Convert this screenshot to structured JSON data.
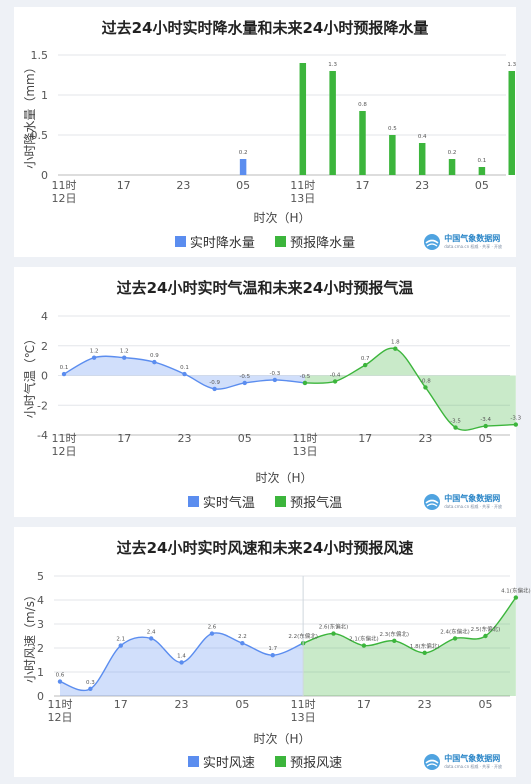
{
  "brand": {
    "name": "中国气象数据网",
    "sub": "data.cma.cn 权威 · 共享 · 开放"
  },
  "colors": {
    "observed": "#5b8def",
    "forecast": "#3cb53c"
  },
  "chart_data": [
    {
      "id": "precip",
      "type": "bar",
      "title": "过去24小时实时降水量和未来24小时预报降水量",
      "ylabel": "小时降水量（mm）",
      "xlabel": "时次（H）",
      "ylim": [
        0,
        1.5
      ],
      "yticks": [
        "0",
        "0.5",
        "1",
        "1.5"
      ],
      "ytick_values": [
        0,
        0.5,
        1,
        1.5
      ],
      "xticks": [
        {
          "i": 0,
          "label": "11时",
          "sub": "12日"
        },
        {
          "i": 6,
          "label": "17",
          "sub": ""
        },
        {
          "i": 12,
          "label": "23",
          "sub": ""
        },
        {
          "i": 18,
          "label": "05",
          "sub": ""
        },
        {
          "i": 24,
          "label": "11时",
          "sub": "13日"
        },
        {
          "i": 30,
          "label": "17",
          "sub": ""
        },
        {
          "i": 36,
          "label": "23",
          "sub": ""
        },
        {
          "i": 42,
          "label": "05",
          "sub": ""
        }
      ],
      "series": [
        {
          "name": "实时降水量",
          "kind": "observed",
          "points": [
            [
              18,
              0.2
            ]
          ]
        },
        {
          "name": "预报降水量",
          "kind": "forecast",
          "points": [
            [
              24,
              1.4
            ],
            [
              27,
              1.3
            ],
            [
              30,
              0.8
            ],
            [
              33,
              0.5
            ],
            [
              36,
              0.4
            ],
            [
              39,
              0.2
            ],
            [
              42,
              0.1
            ],
            [
              45,
              1.3
            ]
          ]
        }
      ],
      "labels": [
        {
          "i": 18,
          "v": 0.2,
          "text": "0.2"
        },
        {
          "i": 27,
          "v": 1.3,
          "text": "1.3"
        },
        {
          "i": 30,
          "v": 0.8,
          "text": "0.8"
        },
        {
          "i": 33,
          "v": 0.5,
          "text": "0.5"
        },
        {
          "i": 36,
          "v": 0.4,
          "text": "0.4"
        },
        {
          "i": 39,
          "v": 0.2,
          "text": "0.2"
        },
        {
          "i": 42,
          "v": 0.1,
          "text": "0.1"
        },
        {
          "i": 45,
          "v": 1.3,
          "text": "1.3"
        }
      ]
    },
    {
      "id": "temp",
      "type": "area",
      "title": "过去24小时实时气温和未来24小时预报气温",
      "ylabel": "小时气温（℃）",
      "xlabel": "时次（H）",
      "ylim": [
        -4,
        4
      ],
      "yticks": [
        "-4",
        "-2",
        "0",
        "2",
        "4"
      ],
      "ytick_values": [
        -4,
        -2,
        0,
        2,
        4
      ],
      "xticks": [
        {
          "i": 0,
          "label": "11时",
          "sub": "12日"
        },
        {
          "i": 6,
          "label": "17",
          "sub": ""
        },
        {
          "i": 12,
          "label": "23",
          "sub": ""
        },
        {
          "i": 18,
          "label": "05",
          "sub": ""
        },
        {
          "i": 24,
          "label": "11时",
          "sub": "13日"
        },
        {
          "i": 30,
          "label": "17",
          "sub": ""
        },
        {
          "i": 36,
          "label": "23",
          "sub": ""
        },
        {
          "i": 42,
          "label": "05",
          "sub": ""
        }
      ],
      "series": [
        {
          "name": "实时气温",
          "kind": "observed",
          "points": [
            [
              0,
              0.1
            ],
            [
              3,
              1.2
            ],
            [
              6,
              1.2
            ],
            [
              9,
              0.9
            ],
            [
              12,
              0.1
            ],
            [
              15,
              -0.9
            ],
            [
              18,
              -0.5
            ],
            [
              21,
              -0.3
            ],
            [
              24,
              -0.5
            ]
          ]
        },
        {
          "name": "预报气温",
          "kind": "forecast",
          "points": [
            [
              24,
              -0.5
            ],
            [
              27,
              -0.4
            ],
            [
              30,
              0.7
            ],
            [
              33,
              1.8
            ],
            [
              36,
              -0.8
            ],
            [
              39,
              -3.5
            ],
            [
              42,
              -3.4
            ],
            [
              45,
              -3.3
            ]
          ]
        }
      ],
      "labels": [
        {
          "i": 0,
          "v": 0.1,
          "text": "0.1"
        },
        {
          "i": 3,
          "v": 1.2,
          "text": "1.2"
        },
        {
          "i": 6,
          "v": 1.2,
          "text": "1.2"
        },
        {
          "i": 9,
          "v": 0.9,
          "text": "0.9"
        },
        {
          "i": 12,
          "v": 0.1,
          "text": "0.1"
        },
        {
          "i": 15,
          "v": -0.9,
          "text": "-0.9"
        },
        {
          "i": 18,
          "v": -0.5,
          "text": "-0.5"
        },
        {
          "i": 21,
          "v": -0.3,
          "text": "-0.3"
        },
        {
          "i": 24,
          "v": -0.5,
          "text": "-0.5"
        },
        {
          "i": 27,
          "v": -0.4,
          "text": "-0.4"
        },
        {
          "i": 30,
          "v": 0.7,
          "text": "0.7"
        },
        {
          "i": 33,
          "v": 1.8,
          "text": "1.8"
        },
        {
          "i": 36,
          "v": -0.8,
          "text": "-0.8"
        },
        {
          "i": 39,
          "v": -3.5,
          "text": "-3.5"
        },
        {
          "i": 42,
          "v": -3.4,
          "text": "-3.4"
        },
        {
          "i": 45,
          "v": -3.3,
          "text": "-3.3"
        }
      ]
    },
    {
      "id": "wind",
      "type": "area",
      "title": "过去24小时实时风速和未来24小时预报风速",
      "ylabel": "小时风速（m/s）",
      "xlabel": "时次（H）",
      "ylim": [
        0,
        5
      ],
      "yticks": [
        "0",
        "1",
        "2",
        "3",
        "4",
        "5"
      ],
      "ytick_values": [
        0,
        1,
        2,
        3,
        4,
        5
      ],
      "xticks": [
        {
          "i": 0,
          "label": "11时",
          "sub": "12日"
        },
        {
          "i": 6,
          "label": "17",
          "sub": ""
        },
        {
          "i": 12,
          "label": "23",
          "sub": ""
        },
        {
          "i": 18,
          "label": "05",
          "sub": ""
        },
        {
          "i": 24,
          "label": "11时",
          "sub": "13日"
        },
        {
          "i": 30,
          "label": "17",
          "sub": ""
        },
        {
          "i": 36,
          "label": "23",
          "sub": ""
        },
        {
          "i": 42,
          "label": "05",
          "sub": ""
        }
      ],
      "series": [
        {
          "name": "实时风速",
          "kind": "observed",
          "points": [
            [
              0,
              0.6
            ],
            [
              3,
              0.3
            ],
            [
              6,
              2.1
            ],
            [
              9,
              2.4
            ],
            [
              12,
              1.4
            ],
            [
              15,
              2.6
            ],
            [
              18,
              2.2
            ],
            [
              21,
              1.7
            ],
            [
              24,
              2.2
            ]
          ]
        },
        {
          "name": "预报风速",
          "kind": "forecast",
          "points": [
            [
              24,
              2.2
            ],
            [
              27,
              2.6
            ],
            [
              30,
              2.1
            ],
            [
              33,
              2.3
            ],
            [
              36,
              1.8
            ],
            [
              39,
              2.4
            ],
            [
              42,
              2.5
            ],
            [
              45,
              4.1
            ]
          ]
        }
      ],
      "labels": [
        {
          "i": 0,
          "v": 0.6,
          "text": "0.6"
        },
        {
          "i": 3,
          "v": 0.3,
          "text": "0.3"
        },
        {
          "i": 6,
          "v": 2.1,
          "text": "2.1"
        },
        {
          "i": 9,
          "v": 2.4,
          "text": "2.4"
        },
        {
          "i": 12,
          "v": 1.4,
          "text": "1.4"
        },
        {
          "i": 15,
          "v": 2.6,
          "text": "2.6"
        },
        {
          "i": 18,
          "v": 2.2,
          "text": "2.2"
        },
        {
          "i": 21,
          "v": 1.7,
          "text": "1.7"
        },
        {
          "i": 24,
          "v": 2.2,
          "text": "2.2(东偏北)"
        },
        {
          "i": 27,
          "v": 2.6,
          "text": "2.6(东偏北)"
        },
        {
          "i": 30,
          "v": 2.1,
          "text": "2.1(东偏北)"
        },
        {
          "i": 33,
          "v": 2.3,
          "text": "2.3(东偏北)"
        },
        {
          "i": 36,
          "v": 1.8,
          "text": "1.8(东偏北)"
        },
        {
          "i": 39,
          "v": 2.4,
          "text": "2.4(东偏北)"
        },
        {
          "i": 42,
          "v": 2.5,
          "text": "2.5(东偏北)"
        },
        {
          "i": 45,
          "v": 4.1,
          "text": "4.1(东偏北)"
        }
      ]
    }
  ]
}
